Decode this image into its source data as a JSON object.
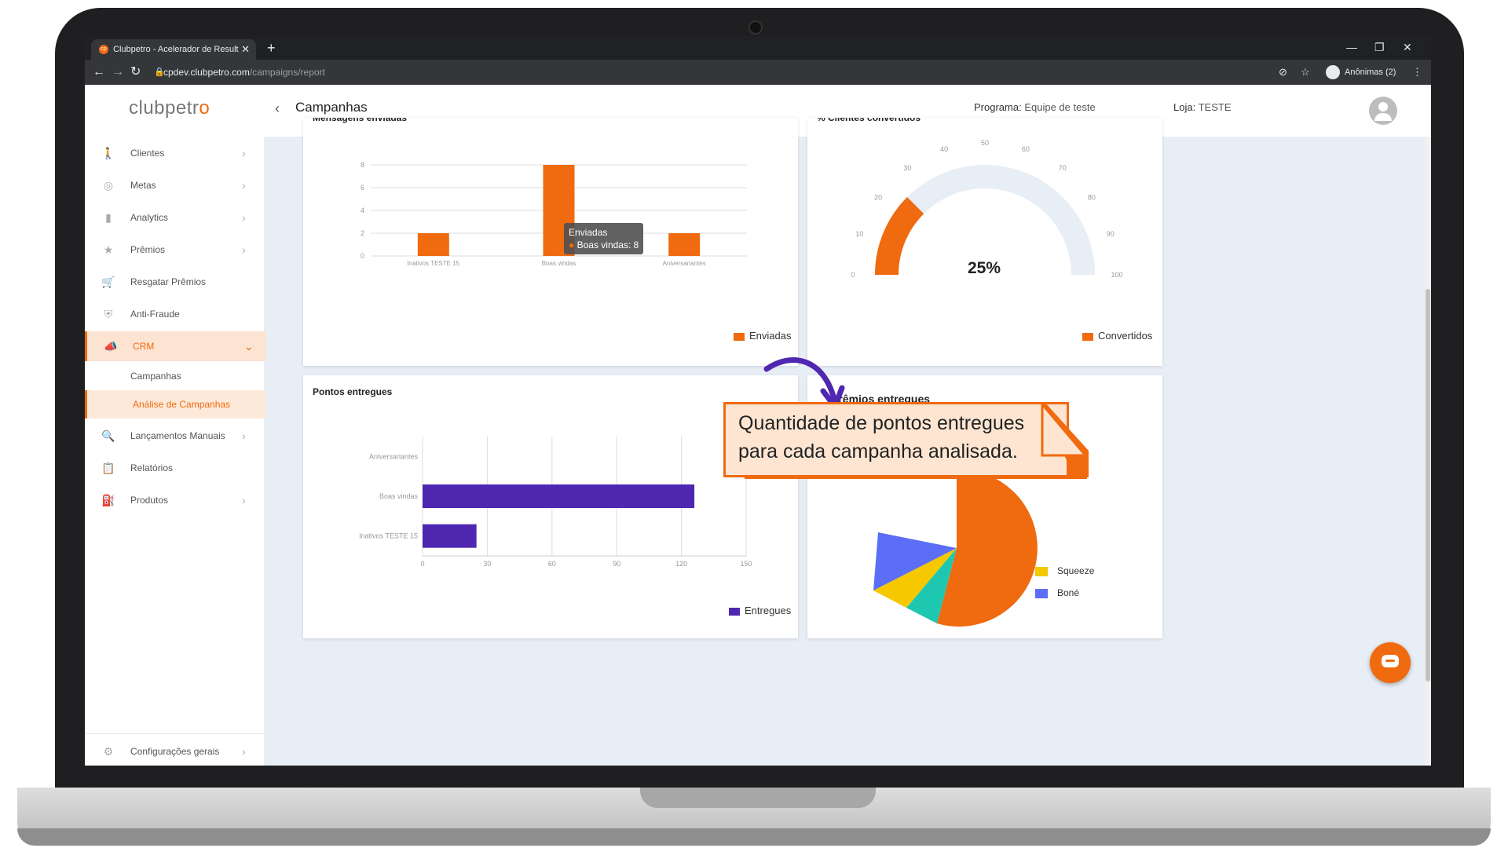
{
  "browser": {
    "tab_title": "Clubpetro - Acelerador de Result",
    "favicon": "cp",
    "url_host": "cpdev.clubpetro.com",
    "url_path": "/campaigns/report",
    "profile_label": "Anônimas (2)"
  },
  "header": {
    "logo_main": "clubpetr",
    "logo_accent": "o",
    "page_title": "Campanhas",
    "programa_label": "Programa:",
    "programa_value": "Equipe de teste",
    "loja_label": "Loja:",
    "loja_value": "TESTE"
  },
  "sidebar": {
    "items": [
      {
        "label": "Clientes",
        "icon": "walk-icon"
      },
      {
        "label": "Metas",
        "icon": "target-icon"
      },
      {
        "label": "Analytics",
        "icon": "bar-chart-icon"
      },
      {
        "label": "Prêmios",
        "icon": "star-icon"
      },
      {
        "label": "Resgatar Prêmios",
        "icon": "cart-icon"
      },
      {
        "label": "Anti-Fraude",
        "icon": "shield-icon"
      },
      {
        "label": "CRM",
        "icon": "megaphone-icon"
      },
      {
        "label": "Lançamentos Manuais",
        "icon": "search-doc-icon"
      },
      {
        "label": "Relatórios",
        "icon": "clipboard-icon"
      },
      {
        "label": "Produtos",
        "icon": "products-icon"
      }
    ],
    "crm_sub": [
      "Campanhas",
      "Análise de Campanhas"
    ],
    "footer_label": "Configurações gerais"
  },
  "cards": {
    "mensagens_title": "Mensagens enviadas",
    "convertidos_title": "% Clientes convertidos",
    "pontos_title": "Pontos entregues",
    "premios_title": "Prêmios entregues"
  },
  "tooltip": {
    "title": "Enviadas",
    "line": "Boas vindas: 8"
  },
  "callout": {
    "text": "Quantidade de pontos entregues para cada campanha analisada."
  },
  "colors": {
    "brand": "#f06a0f",
    "purple": "#4f27b0",
    "squeeze": "#f5c800",
    "bone": "#5b6ef5",
    "teal": "#1ec8b0"
  },
  "chart_data": [
    {
      "type": "bar",
      "title": "Mensagens enviadas",
      "categories": [
        "Inativos TESTE 15",
        "Boas vindas",
        "Aniversariantes"
      ],
      "series": [
        {
          "name": "Enviadas",
          "values": [
            2,
            8,
            2
          ]
        }
      ],
      "ylim": [
        0,
        8
      ],
      "yticks": [
        0,
        2,
        4,
        6,
        8
      ]
    },
    {
      "type": "gauge",
      "title": "% Clientes convertidos",
      "value": 25,
      "value_label": "25%",
      "range": [
        0,
        100
      ],
      "ticks": [
        0,
        10,
        20,
        30,
        40,
        50,
        60,
        70,
        80,
        90,
        100
      ],
      "series": [
        {
          "name": "Convertidos",
          "values": [
            25
          ]
        }
      ]
    },
    {
      "type": "bar",
      "orientation": "horizontal",
      "title": "Pontos entregues",
      "categories": [
        "Aniversariantes",
        "Boas vindas",
        "Inativos TESTE 15"
      ],
      "series": [
        {
          "name": "Entregues",
          "values": [
            0,
            126,
            25
          ]
        }
      ],
      "xlim": [
        0,
        150
      ],
      "xticks": [
        0,
        30,
        60,
        90,
        120,
        150
      ]
    },
    {
      "type": "pie",
      "title": "Prêmios entregues",
      "legend_visible": [
        "Squeeze",
        "Boné"
      ]
    }
  ]
}
